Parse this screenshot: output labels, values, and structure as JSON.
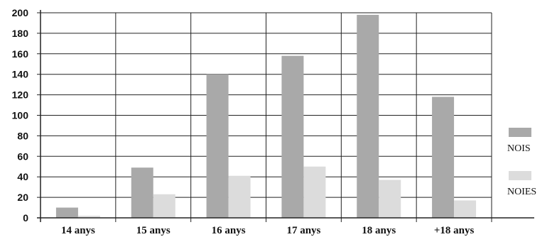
{
  "chart_data": {
    "type": "bar",
    "title": "",
    "xlabel": "",
    "ylabel": "",
    "categories": [
      "14 anys",
      "15 anys",
      "16 anys",
      "17 anys",
      "18 anys",
      "+18 anys"
    ],
    "series": [
      {
        "name": "NOIS",
        "color": "#a9a9a9",
        "values": [
          10,
          49,
          140,
          158,
          198,
          118
        ]
      },
      {
        "name": "NOIES",
        "color": "#dcdcdc",
        "values": [
          2,
          23,
          41,
          50,
          37,
          17
        ]
      }
    ],
    "ylim": [
      0,
      200
    ],
    "yticks": [
      0,
      20,
      40,
      60,
      80,
      100,
      120,
      140,
      160,
      180,
      200
    ],
    "grid": true,
    "legend_position": "right"
  }
}
